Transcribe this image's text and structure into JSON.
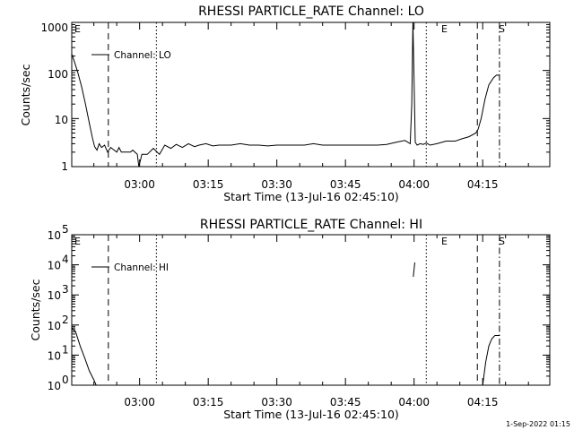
{
  "footer": {
    "date_stamp": "1-Sep-2022 01:15"
  },
  "chart_data": [
    {
      "type": "line",
      "title": "RHESSI PARTICLE_RATE Channel: LO",
      "xlabel": "Start Time (13-Jul-16 02:45:10)",
      "ylabel": "Counts/sec",
      "yscale": "log",
      "ylim": [
        1,
        1000
      ],
      "xlim": [
        "02:45:10",
        "04:29:40"
      ],
      "x_ticks": [
        "03:00",
        "03:15",
        "03:30",
        "03:45",
        "04:00",
        "04:15"
      ],
      "y_ticks": [
        "1",
        "10",
        "100",
        "1000"
      ],
      "legend": {
        "label": "Channel: LO",
        "position": "top-left"
      },
      "grid": false,
      "markers": [
        {
          "label": "E",
          "time": "02:45:10",
          "style": "solid"
        },
        {
          "label": "",
          "time": "02:53:10",
          "style": "dashed"
        },
        {
          "label": "",
          "time": "03:03:40",
          "style": "dotted"
        },
        {
          "label": "E",
          "time": "04:02:40",
          "style": "dotted"
        },
        {
          "label": "S",
          "time": "04:13:50",
          "style": "dashed"
        },
        {
          "label": "",
          "time": "04:18:40",
          "style": "dashdot"
        }
      ],
      "series": [
        {
          "x": [
            "02:45:10",
            "02:45:40",
            "02:46:30",
            "02:47:20",
            "02:48:10",
            "02:49:00",
            "02:49:40",
            "02:50:10",
            "02:50:40",
            "02:51:10",
            "02:51:40",
            "02:52:20",
            "02:53:00",
            "02:53:40",
            "02:55:00",
            "02:55:30",
            "02:56:00",
            "02:58:00",
            "02:58:30",
            "02:59:30",
            "02:59:50",
            "03:00:30",
            "03:00:50",
            "03:01:40",
            "03:03:00",
            "03:04:20",
            "03:05:30",
            "03:06:50",
            "03:08:00",
            "03:09:20",
            "03:10:40",
            "03:12:00",
            "03:13:00",
            "03:14:30",
            "03:16:00",
            "03:17:20",
            "03:18:40",
            "03:20:00",
            "03:22:00",
            "03:24:00",
            "03:26:00",
            "03:28:00",
            "03:30:00",
            "03:32:00",
            "03:34:00",
            "03:36:00",
            "03:38:00",
            "03:40:00",
            "03:42:00",
            "03:44:00",
            "03:46:00",
            "03:48:00",
            "03:50:00",
            "03:52:00",
            "03:54:00",
            "03:56:00",
            "03:58:00",
            "03:59:10",
            "03:59:30",
            "03:59:45",
            "04:00:00",
            "04:00:15",
            "04:00:40",
            "04:01:20",
            "04:02:00",
            "04:02:40",
            "04:03:30",
            "04:05:00",
            "04:07:00",
            "04:09:00",
            "04:10:30",
            "04:12:00",
            "04:13:30",
            "04:14:00",
            "04:14:40",
            "04:15:30",
            "04:16:20",
            "04:17:20",
            "04:18:00",
            "04:18:40"
          ],
          "y": [
            220,
            160,
            90,
            45,
            20,
            8,
            4,
            2.6,
            2.2,
            3,
            2.5,
            2.8,
            2.0,
            2.5,
            2.0,
            2.5,
            2.0,
            2.0,
            2.2,
            1.8,
            1.0,
            1.8,
            1.8,
            1.8,
            2.4,
            1.8,
            2.8,
            2.4,
            2.9,
            2.5,
            3.0,
            2.6,
            2.8,
            3.0,
            2.7,
            2.8,
            2.8,
            2.8,
            3.0,
            2.8,
            2.8,
            2.7,
            2.8,
            2.8,
            2.8,
            2.8,
            3.0,
            2.8,
            2.8,
            2.8,
            2.8,
            2.8,
            2.8,
            2.8,
            2.9,
            3.2,
            3.5,
            3.0,
            20,
            1000,
            60,
            3.2,
            2.8,
            3.0,
            2.9,
            3.1,
            2.8,
            3.0,
            3.4,
            3.4,
            3.8,
            4.2,
            5,
            6,
            10,
            25,
            50,
            70,
            80,
            80
          ]
        }
      ]
    },
    {
      "type": "line",
      "title": "RHESSI PARTICLE_RATE Channel: HI",
      "xlabel": "Start Time (13-Jul-16 02:45:10)",
      "ylabel": "Counts/sec",
      "yscale": "log",
      "ylim": [
        1,
        100000
      ],
      "xlim": [
        "02:45:10",
        "04:29:40"
      ],
      "x_ticks": [
        "03:00",
        "03:15",
        "03:30",
        "03:45",
        "04:00",
        "04:15"
      ],
      "y_ticks": [
        {
          "base": "10",
          "exp": "0"
        },
        {
          "base": "10",
          "exp": "1"
        },
        {
          "base": "10",
          "exp": "2"
        },
        {
          "base": "10",
          "exp": "3"
        },
        {
          "base": "10",
          "exp": "4"
        },
        {
          "base": "10",
          "exp": "5"
        }
      ],
      "legend": {
        "label": "Channel: HI",
        "position": "top-left"
      },
      "grid": false,
      "markers": [
        {
          "label": "E",
          "time": "02:45:10",
          "style": "solid"
        },
        {
          "label": "",
          "time": "02:53:10",
          "style": "dashed"
        },
        {
          "label": "",
          "time": "03:03:40",
          "style": "dotted"
        },
        {
          "label": "E",
          "time": "04:02:40",
          "style": "dotted"
        },
        {
          "label": "S",
          "time": "04:13:50",
          "style": "dashed"
        },
        {
          "label": "",
          "time": "04:18:40",
          "style": "dashdot"
        }
      ],
      "series": [
        {
          "x": [
            "02:45:10",
            "02:46:00",
            "02:47:00",
            "02:48:00",
            "02:49:00",
            "02:50:00",
            "02:50:30"
          ],
          "y": [
            80,
            60,
            20,
            8,
            3,
            1.5,
            1
          ]
        },
        {
          "x": [
            "03:59:50",
            "04:00:10"
          ],
          "y": [
            4000,
            12000
          ]
        },
        {
          "x": [
            "04:15:00",
            "04:15:40",
            "04:16:20",
            "04:17:00",
            "04:17:40",
            "04:18:40"
          ],
          "y": [
            1,
            6,
            20,
            35,
            45,
            45
          ]
        }
      ]
    }
  ]
}
